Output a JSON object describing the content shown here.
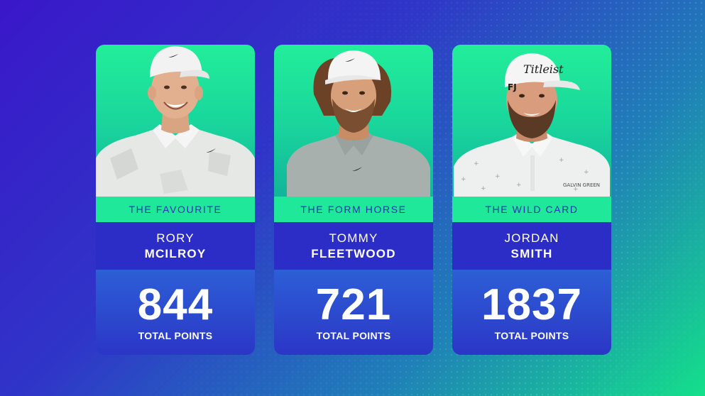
{
  "cards": [
    {
      "tag": "THE FAVOURITE",
      "first_name": "RORY",
      "last_name": "MCILROY",
      "points": "844",
      "points_label": "TOTAL POINTS"
    },
    {
      "tag": "THE FORM HORSE",
      "first_name": "TOMMY",
      "last_name": "FLEETWOOD",
      "points": "721",
      "points_label": "TOTAL POINTS"
    },
    {
      "tag": "THE WILD CARD",
      "first_name": "JORDAN",
      "last_name": "SMITH",
      "points": "1837",
      "points_label": "TOTAL POINTS",
      "cap_logo": "Titleist",
      "shirt_logo": "GALVIN GREEN",
      "cap_side_logo": "FJ"
    }
  ],
  "colors": {
    "bg_start": "#3a17c9",
    "bg_end": "#14e08a",
    "card_green": "#1fe89a",
    "name_band": "#2b2dc6",
    "points_band": "#2d5fd6",
    "tag_text": "#2b2fb8"
  }
}
